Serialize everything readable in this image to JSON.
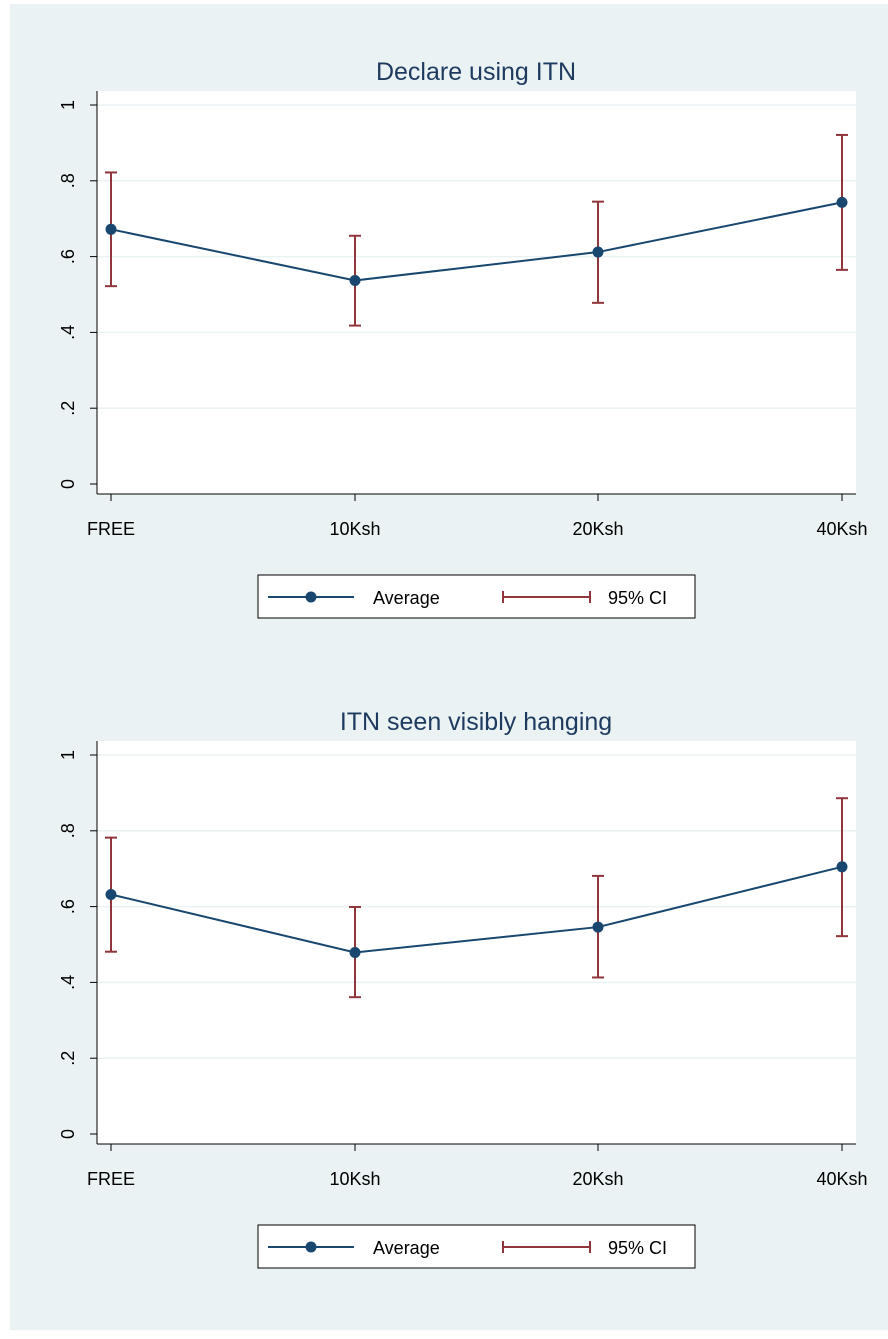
{
  "colors": {
    "outer_background": "#eaf2f3",
    "plot_background": "#ffffff",
    "grid": "#eaf2f3",
    "series_line": "#1a476f",
    "ci": "#90353b",
    "title": "#1e3a5f"
  },
  "chart_data": [
    {
      "type": "line",
      "title": "Declare using ITN",
      "categories": [
        "FREE",
        "10Ksh",
        "20Ksh",
        "40Ksh"
      ],
      "ylim": [
        0,
        1
      ],
      "yticks": [
        0,
        0.2,
        0.4,
        0.6,
        0.8,
        1
      ],
      "ytick_labels": [
        "0",
        ".2",
        ".4",
        ".6",
        ".8",
        "1"
      ],
      "grid": true,
      "legend_position": "bottom",
      "series": [
        {
          "name": "Average",
          "values": [
            0.672,
            0.537,
            0.612,
            0.743
          ]
        }
      ],
      "ci_name": "95% CI",
      "ci_lower": [
        0.522,
        0.418,
        0.478,
        0.565
      ],
      "ci_upper": [
        0.822,
        0.655,
        0.745,
        0.921
      ]
    },
    {
      "type": "line",
      "title": "ITN seen visibly hanging",
      "categories": [
        "FREE",
        "10Ksh",
        "20Ksh",
        "40Ksh"
      ],
      "ylim": [
        0,
        1
      ],
      "yticks": [
        0,
        0.2,
        0.4,
        0.6,
        0.8,
        1
      ],
      "ytick_labels": [
        "0",
        ".2",
        ".4",
        ".6",
        ".8",
        "1"
      ],
      "grid": true,
      "legend_position": "bottom",
      "series": [
        {
          "name": "Average",
          "values": [
            0.632,
            0.479,
            0.546,
            0.705
          ]
        }
      ],
      "ci_name": "95% CI",
      "ci_lower": [
        0.481,
        0.361,
        0.413,
        0.522
      ],
      "ci_upper": [
        0.782,
        0.599,
        0.681,
        0.886
      ]
    }
  ]
}
